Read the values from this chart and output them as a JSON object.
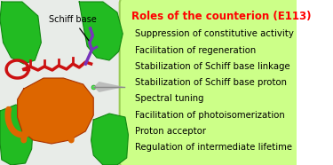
{
  "title": "Roles of the counterion (E113)",
  "title_color": "#ff0000",
  "items": [
    "Suppression of constitutive activity",
    "Facilitation of regeneration",
    "Stabilization of Schiff base linkage",
    "Stabilization of Schiff base proton",
    "Spectral tuning",
    "Facilitation of photoisomerization",
    "Proton acceptor",
    "Regulation of intermediate lifetime"
  ],
  "box_facecolor": "#ccff88",
  "box_edgecolor": "#99cc55",
  "text_color": "#000000",
  "title_fontsize": 8.5,
  "item_fontsize": 7.3,
  "schiff_base_label": "Schiff base",
  "bg_color": "#ffffff",
  "left_bg": "#f0f0f0",
  "fig_width": 3.75,
  "fig_height": 1.86,
  "dpi": 100,
  "green_helix": "#22bb22",
  "green_helix_dark": "#118811",
  "orange_color": "#dd6600",
  "orange_dark": "#aa3300",
  "red_retinal": "#cc1111",
  "purple_sb": "#7733bb",
  "green_dot": "#44ff44"
}
